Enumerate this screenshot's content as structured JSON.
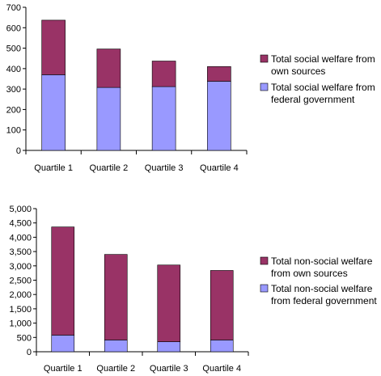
{
  "colors": {
    "own_sources": "#993366",
    "federal": "#9999FF",
    "axis": "#000000",
    "background": "#FFFFFF"
  },
  "chart_data": [
    {
      "type": "bar",
      "stacked": true,
      "title": "",
      "xlabel": "",
      "ylabel": "",
      "categories": [
        "Quartile 1",
        "Quartile 2",
        "Quartile 3",
        "Quartile 4"
      ],
      "ylim": [
        0,
        700
      ],
      "yticks": [
        0,
        100,
        200,
        300,
        400,
        500,
        600,
        700
      ],
      "ytick_labels": [
        "0",
        "100",
        "200",
        "300",
        "400",
        "500",
        "600",
        "700"
      ],
      "grid": false,
      "legend_position": "right",
      "series": [
        {
          "name": "Total social welfare from federal government",
          "values": [
            370,
            308,
            312,
            338
          ]
        },
        {
          "name": "Total social welfare from own sources",
          "values": [
            267,
            188,
            125,
            72
          ]
        }
      ],
      "legend": [
        {
          "line1": "Total social welfare from",
          "line2": "own sources",
          "series_index": 1
        },
        {
          "line1": "Total social welfare from",
          "line2": "federal government",
          "series_index": 0
        }
      ]
    },
    {
      "type": "bar",
      "stacked": true,
      "title": "",
      "xlabel": "",
      "ylabel": "",
      "categories": [
        "Quartile 1",
        "Quartile 2",
        "Quartile 3",
        "Quartile 4"
      ],
      "ylim": [
        0,
        5000
      ],
      "yticks": [
        0,
        500,
        1000,
        1500,
        2000,
        2500,
        3000,
        3500,
        4000,
        4500,
        5000
      ],
      "ytick_labels": [
        "0",
        "500",
        "1,000",
        "1,500",
        "2,000",
        "2,500",
        "3,000",
        "3,500",
        "4,000",
        "4,500",
        "5,000"
      ],
      "grid": false,
      "legend_position": "right",
      "series": [
        {
          "name": "Total non-social welfare from federal government",
          "values": [
            580,
            410,
            350,
            410
          ]
        },
        {
          "name": "Total non-social welfare from own sources",
          "values": [
            3780,
            2990,
            2680,
            2430
          ]
        }
      ],
      "legend": [
        {
          "line1": "Total non-social welfare",
          "line2": "from own sources",
          "series_index": 1
        },
        {
          "line1": "Total non-social welfare",
          "line2": "from federal government",
          "series_index": 0
        }
      ]
    }
  ]
}
